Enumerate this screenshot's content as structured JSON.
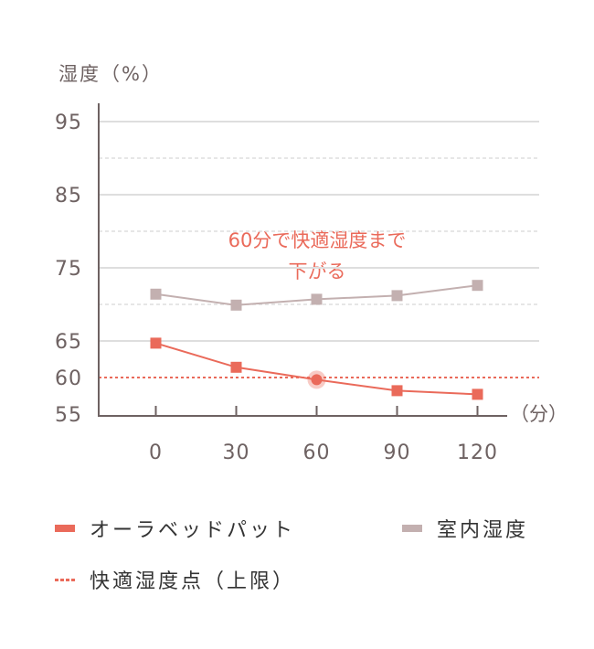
{
  "chart_data": {
    "type": "line",
    "ylabel": "湿度（%）",
    "xlabel": "（分）",
    "x": [
      0,
      30,
      60,
      90,
      120
    ],
    "x_tick_labels": [
      "0",
      "30",
      "60",
      "90",
      "120"
    ],
    "y_tick_labels": [
      "95",
      "85",
      "75",
      "65",
      "60",
      "55"
    ],
    "y_ticks": [
      95,
      85,
      75,
      65,
      60,
      55
    ],
    "ylim": [
      55,
      97
    ],
    "xlim": [
      -22,
      145
    ],
    "grid": {
      "solid": [
        95,
        85,
        75,
        65
      ],
      "dashed": [
        90,
        80,
        70
      ]
    },
    "series": [
      {
        "name": "オーラベッドパット",
        "color": "#ea6a5a",
        "values": [
          64.7,
          61.4,
          59.7,
          58.2,
          57.7
        ],
        "marker": "square"
      },
      {
        "name": "室内湿度",
        "color": "#c3b0b0",
        "values": [
          71.4,
          69.9,
          70.7,
          71.2,
          72.6
        ],
        "marker": "square"
      }
    ],
    "reference_line": {
      "name": "快適湿度点（上限）",
      "value": 60,
      "color": "#ea6a5a",
      "style": "dotted"
    },
    "highlight": {
      "x": 60,
      "y": 59.7
    },
    "annotation": {
      "lines": [
        "60分で快適湿度まで",
        "下がる"
      ],
      "color": "#ea6a5a"
    },
    "highlight_tick_color": "#d9382a",
    "legend_placement": "bottom"
  }
}
